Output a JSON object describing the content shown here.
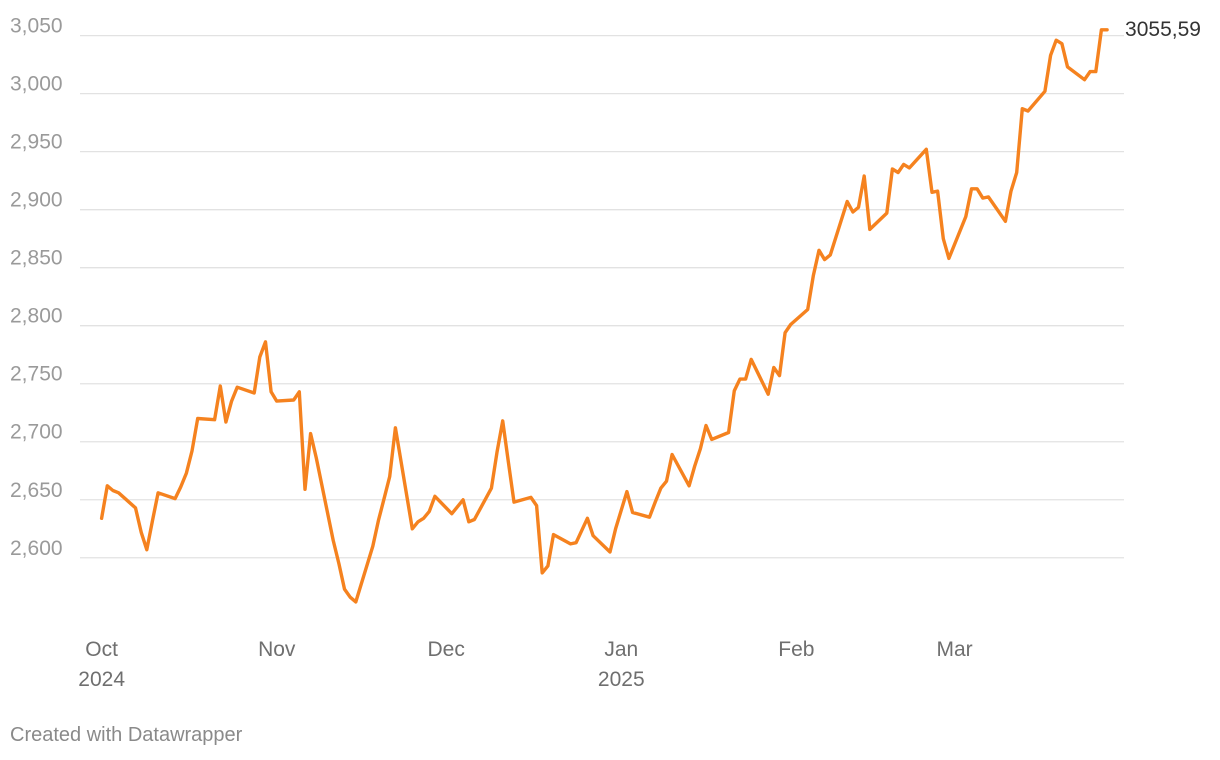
{
  "colors": {
    "line": "#f5821f",
    "grid": "#e2e2e2"
  },
  "footer": {
    "credit": "Created with Datawrapper"
  },
  "chart_data": {
    "type": "line",
    "ylim": [
      2555,
      3060
    ],
    "yticks": [
      2600,
      2650,
      2700,
      2750,
      2800,
      2850,
      2900,
      2950,
      3000,
      3050
    ],
    "ytick_labels": [
      "2,600",
      "2,650",
      "2,700",
      "2,750",
      "2,800",
      "2,850",
      "2,900",
      "2,950",
      "3,000",
      "3,050"
    ],
    "xlim": [
      "2024-09-30",
      "2025-03-31"
    ],
    "xticks": [
      {
        "date": "2024-10-01",
        "label": "Oct",
        "sublabel": "2024"
      },
      {
        "date": "2024-11-01",
        "label": "Nov",
        "sublabel": ""
      },
      {
        "date": "2024-12-01",
        "label": "Dec",
        "sublabel": ""
      },
      {
        "date": "2025-01-01",
        "label": "Jan",
        "sublabel": "2025"
      },
      {
        "date": "2025-02-01",
        "label": "Feb",
        "sublabel": ""
      },
      {
        "date": "2025-03-01",
        "label": "Mar",
        "sublabel": ""
      }
    ],
    "grid": true,
    "end_label": "3055,59",
    "series": [
      {
        "color": "#f5821f",
        "x": [
          "2024-10-01",
          "2024-10-02",
          "2024-10-03",
          "2024-10-04",
          "2024-10-07",
          "2024-10-08",
          "2024-10-09",
          "2024-10-10",
          "2024-10-11",
          "2024-10-14",
          "2024-10-15",
          "2024-10-16",
          "2024-10-17",
          "2024-10-18",
          "2024-10-21",
          "2024-10-22",
          "2024-10-23",
          "2024-10-24",
          "2024-10-25",
          "2024-10-28",
          "2024-10-29",
          "2024-10-30",
          "2024-10-31",
          "2024-11-01",
          "2024-11-04",
          "2024-11-05",
          "2024-11-06",
          "2024-11-07",
          "2024-11-08",
          "2024-11-11",
          "2024-11-12",
          "2024-11-13",
          "2024-11-14",
          "2024-11-15",
          "2024-11-18",
          "2024-11-19",
          "2024-11-20",
          "2024-11-21",
          "2024-11-22",
          "2024-11-25",
          "2024-11-26",
          "2024-11-27",
          "2024-11-28",
          "2024-11-29",
          "2024-12-02",
          "2024-12-03",
          "2024-12-04",
          "2024-12-05",
          "2024-12-06",
          "2024-12-09",
          "2024-12-10",
          "2024-12-11",
          "2024-12-12",
          "2024-12-13",
          "2024-12-16",
          "2024-12-17",
          "2024-12-18",
          "2024-12-19",
          "2024-12-20",
          "2024-12-23",
          "2024-12-24",
          "2024-12-26",
          "2024-12-27",
          "2024-12-30",
          "2024-12-31",
          "2025-01-02",
          "2025-01-03",
          "2025-01-06",
          "2025-01-07",
          "2025-01-08",
          "2025-01-09",
          "2025-01-10",
          "2025-01-13",
          "2025-01-14",
          "2025-01-15",
          "2025-01-16",
          "2025-01-17",
          "2025-01-20",
          "2025-01-21",
          "2025-01-22",
          "2025-01-23",
          "2025-01-24",
          "2025-01-27",
          "2025-01-28",
          "2025-01-29",
          "2025-01-30",
          "2025-01-31",
          "2025-02-03",
          "2025-02-04",
          "2025-02-05",
          "2025-02-06",
          "2025-02-07",
          "2025-02-10",
          "2025-02-11",
          "2025-02-12",
          "2025-02-13",
          "2025-02-14",
          "2025-02-17",
          "2025-02-18",
          "2025-02-19",
          "2025-02-20",
          "2025-02-21",
          "2025-02-24",
          "2025-02-25",
          "2025-02-26",
          "2025-02-27",
          "2025-02-28",
          "2025-03-03",
          "2025-03-04",
          "2025-03-05",
          "2025-03-06",
          "2025-03-07",
          "2025-03-10",
          "2025-03-11",
          "2025-03-12",
          "2025-03-13",
          "2025-03-14",
          "2025-03-17",
          "2025-03-18",
          "2025-03-19",
          "2025-03-20",
          "2025-03-21",
          "2025-03-24",
          "2025-03-25",
          "2025-03-26",
          "2025-03-27",
          "2025-03-28"
        ],
        "values": [
          2634,
          2662,
          2658,
          2656,
          2643,
          2622,
          2607,
          2632,
          2656,
          2651,
          2661,
          2673,
          2692,
          2720,
          2719,
          2748,
          2717,
          2735,
          2747,
          2742,
          2773,
          2786,
          2743,
          2735,
          2736,
          2743,
          2659,
          2707,
          2686,
          2615,
          2595,
          2573,
          2566,
          2562,
          2610,
          2632,
          2651,
          2670,
          2712,
          2625,
          2631,
          2634,
          2640,
          2653,
          2638,
          2644,
          2650,
          2631,
          2633,
          2660,
          2691,
          2718,
          2683,
          2648,
          2652,
          2645,
          2587,
          2593,
          2620,
          2612,
          2613,
          2634,
          2619,
          2605,
          2625,
          2657,
          2639,
          2635,
          2648,
          2660,
          2666,
          2689,
          2662,
          2679,
          2694,
          2714,
          2702,
          2708,
          2744,
          2754,
          2754,
          2771,
          2741,
          2764,
          2757,
          2794,
          2801,
          2814,
          2843,
          2865,
          2857,
          2861,
          2907,
          2898,
          2902,
          2929,
          2883,
          2897,
          2935,
          2932,
          2939,
          2936,
          2952,
          2915,
          2916,
          2875,
          2858,
          2894,
          2918,
          2918,
          2910,
          2911,
          2890,
          2916,
          2932,
          2987,
          2985,
          3002,
          3033,
          3046,
          3043,
          3023,
          3012,
          3019,
          3019,
          3055,
          3055
        ]
      }
    ]
  }
}
